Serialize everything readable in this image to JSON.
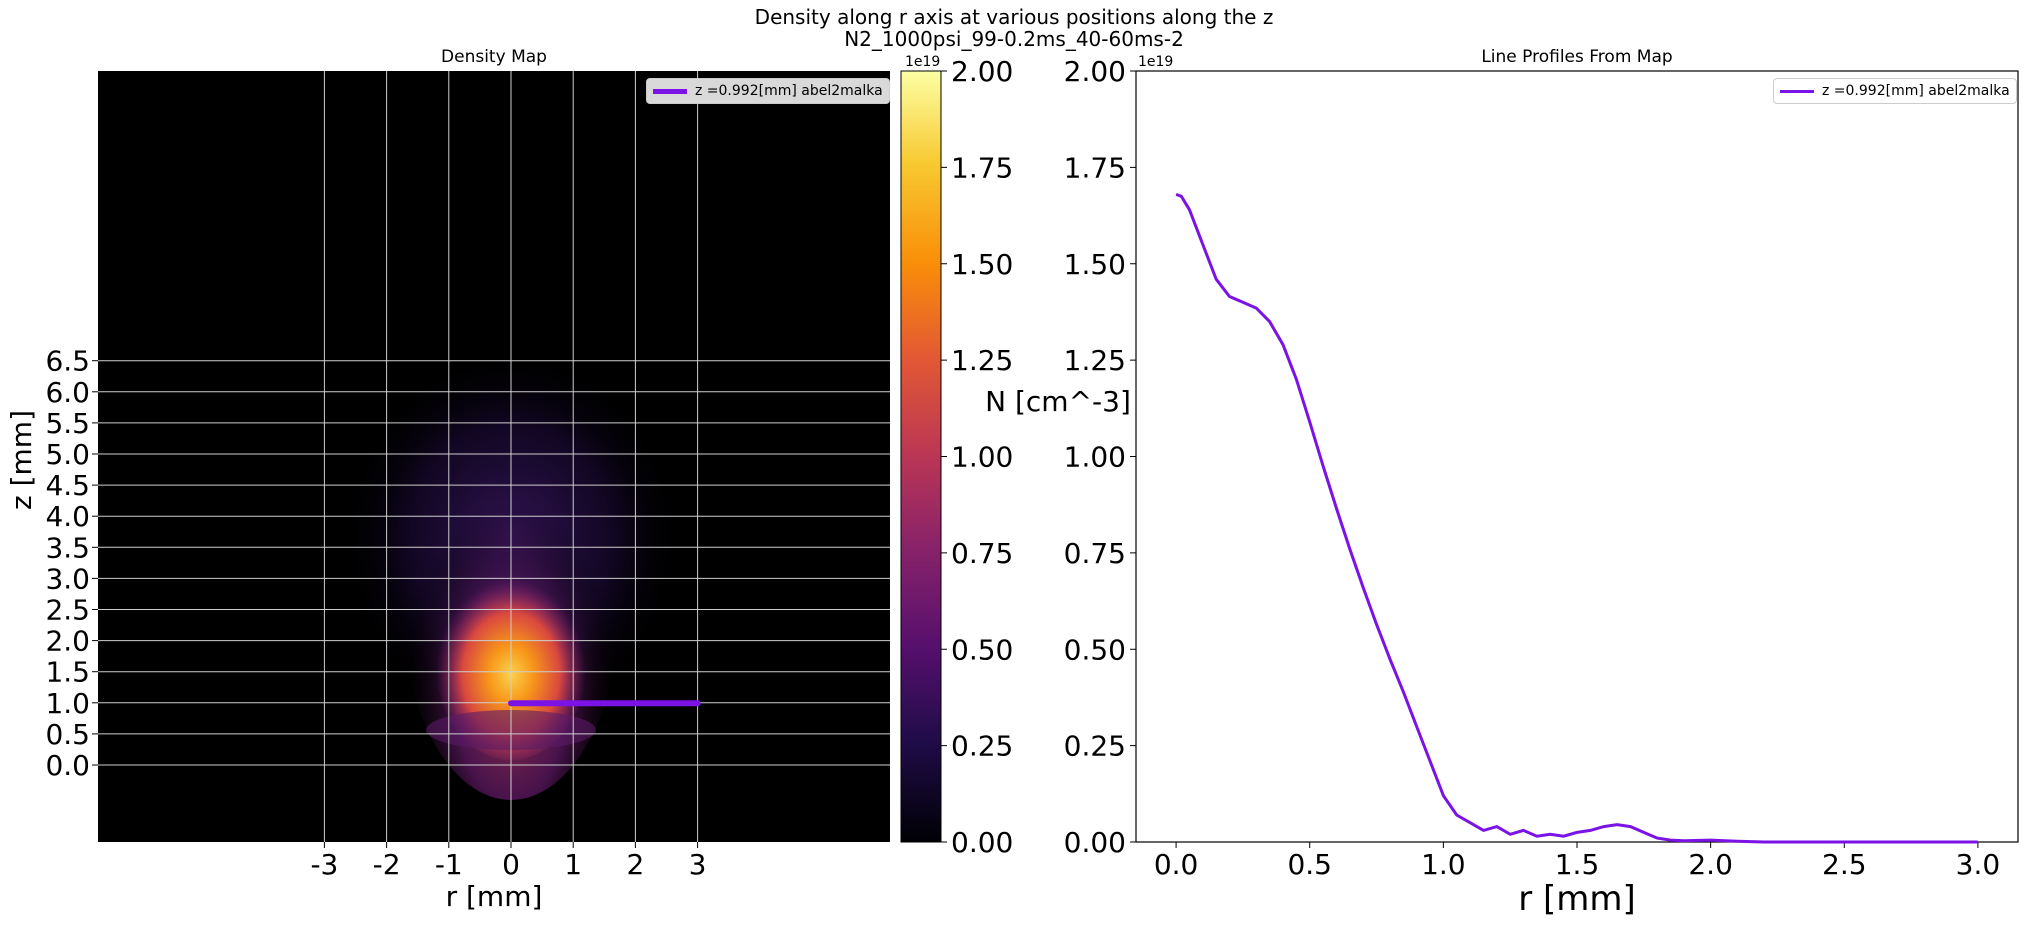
{
  "figure": {
    "title_line1": "Density along r axis at various positions along the z",
    "title_line2": "N2_1000psi_99-0.2ms_40-60ms-2"
  },
  "colors": {
    "line": "#7b12e6",
    "grid": "#cfcfcf",
    "background_map": "#000000"
  },
  "chart_data": [
    {
      "type": "heatmap",
      "title": "Density Map",
      "xlabel": "r [mm]",
      "ylabel": "z [mm]",
      "colormap": "inferno-like (black-purple-orange-yellow)",
      "x_ticks": [
        "-3",
        "-2",
        "-1",
        "0",
        "1",
        "2",
        "3"
      ],
      "y_ticks": [
        "0.0",
        "0.5",
        "1.0",
        "1.5",
        "2.0",
        "2.5",
        "3.0",
        "3.5",
        "4.0",
        "4.5",
        "5.0",
        "5.5",
        "6.0",
        "6.5"
      ],
      "grid": true,
      "legend": {
        "label": "z =0.992[mm] abel2malka",
        "placement": "top-right"
      },
      "profile_line": {
        "z": 0.992,
        "r_start": 0,
        "r_end": 3
      },
      "colorbar": {
        "label": "N [cm^-3]",
        "offset_text": "1e19",
        "range": [
          0,
          2.0
        ],
        "ticks": [
          "0.00",
          "0.25",
          "0.50",
          "0.75",
          "1.00",
          "1.25",
          "1.50",
          "1.75",
          "2.00"
        ]
      }
    },
    {
      "type": "line",
      "title": "Line Profiles From Map",
      "xlabel": "r [mm]",
      "ylabel": "",
      "offset_text": "1e19",
      "xlim": [
        -0.15,
        3.15
      ],
      "ylim": [
        0,
        2.0
      ],
      "x_ticks": [
        "0.0",
        "0.5",
        "1.0",
        "1.5",
        "2.0",
        "2.5",
        "3.0"
      ],
      "y_ticks": [
        "0.00",
        "0.25",
        "0.50",
        "0.75",
        "1.00",
        "1.25",
        "1.50",
        "1.75",
        "2.00"
      ],
      "grid": false,
      "legend_placement": "top-right",
      "series": [
        {
          "name": "z =0.992[mm] abel2malka",
          "x": [
            0.0,
            0.02,
            0.05,
            0.1,
            0.15,
            0.2,
            0.25,
            0.3,
            0.35,
            0.4,
            0.45,
            0.5,
            0.55,
            0.6,
            0.65,
            0.7,
            0.75,
            0.8,
            0.85,
            0.9,
            0.95,
            1.0,
            1.05,
            1.1,
            1.15,
            1.2,
            1.25,
            1.3,
            1.35,
            1.4,
            1.45,
            1.5,
            1.55,
            1.6,
            1.65,
            1.7,
            1.75,
            1.8,
            1.85,
            1.9,
            2.0,
            2.1,
            2.2,
            2.5,
            3.0
          ],
          "y": [
            1.68,
            1.675,
            1.64,
            1.55,
            1.46,
            1.415,
            1.4,
            1.385,
            1.35,
            1.29,
            1.2,
            1.09,
            0.975,
            0.865,
            0.76,
            0.66,
            0.565,
            0.475,
            0.39,
            0.3,
            0.21,
            0.12,
            0.07,
            0.05,
            0.03,
            0.04,
            0.02,
            0.03,
            0.015,
            0.02,
            0.015,
            0.025,
            0.03,
            0.04,
            0.045,
            0.04,
            0.025,
            0.01,
            0.005,
            0.003,
            0.005,
            0.002,
            0.0,
            0.0,
            0.0
          ]
        }
      ]
    }
  ]
}
